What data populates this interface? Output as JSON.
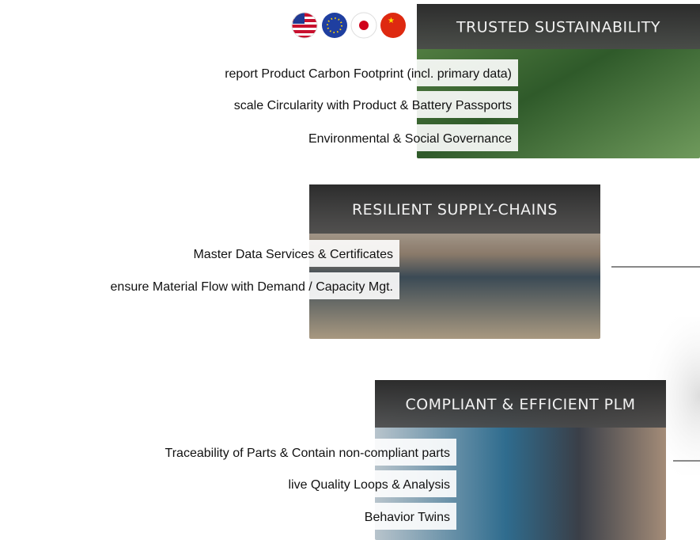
{
  "sections": [
    {
      "title": "TRUSTED SUSTAINABILITY",
      "items": [
        "report Product Carbon Footprint (incl. primary data)",
        "scale Circularity with Product & Battery Passports",
        "Environmental & Social Governance"
      ]
    },
    {
      "title": "RESILIENT SUPPLY-CHAINS",
      "items": [
        "Master Data Services & Certificates",
        "ensure Material Flow with Demand / Capacity Mgt."
      ]
    },
    {
      "title": "COMPLIANT & EFFICIENT PLM",
      "items": [
        "Traceability of Parts & Contain non-compliant parts",
        "live Quality Loops & Analysis",
        "Behavior Twins"
      ]
    }
  ]
}
